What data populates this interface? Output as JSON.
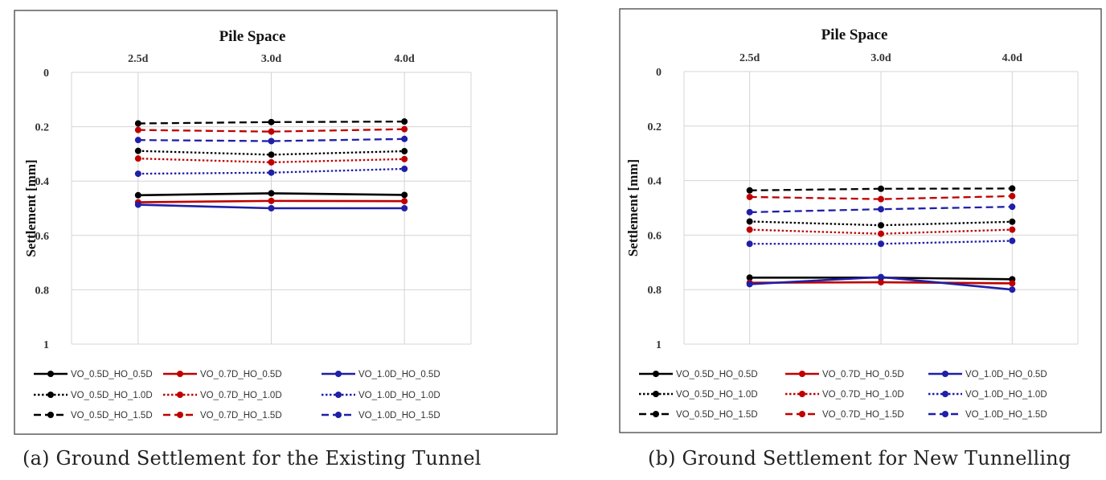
{
  "chart_data": [
    {
      "type": "line",
      "title": "Pile Space",
      "xlabel": "",
      "ylabel": "Settlement [mm]",
      "categories": [
        "2.5d",
        "3.0d",
        "4.0d"
      ],
      "y_ticks": [
        "0",
        "0.2",
        "0.4",
        "0.6",
        "0.8",
        "1"
      ],
      "ylim": [
        0,
        1
      ],
      "y_inverted": true,
      "x_axis_position": "top",
      "grid": true,
      "legend_position": "bottom",
      "series": [
        {
          "name": "VO_0.5D_HO_0.5D",
          "color": "#000000",
          "style": "solid",
          "values": [
            0.452,
            0.445,
            0.451
          ]
        },
        {
          "name": "VO_0.5D_HO_1.0D",
          "color": "#000000",
          "style": "dotted",
          "values": [
            0.289,
            0.303,
            0.29
          ]
        },
        {
          "name": "VO_0.5D_HO_1.5D",
          "color": "#000000",
          "style": "dashed",
          "values": [
            0.188,
            0.183,
            0.181
          ]
        },
        {
          "name": "VO_0.7D_HO_0.5D",
          "color": "#c00000",
          "style": "solid",
          "values": [
            0.478,
            0.473,
            0.474
          ]
        },
        {
          "name": "VO_0.7D_HO_1.0D",
          "color": "#c00000",
          "style": "dotted",
          "values": [
            0.317,
            0.331,
            0.319
          ]
        },
        {
          "name": "VO_0.7D_HO_1.5D",
          "color": "#c00000",
          "style": "dashed",
          "values": [
            0.212,
            0.218,
            0.209
          ]
        },
        {
          "name": "VO_1.0D_HO_0.5D",
          "color": "#1f1fa8",
          "style": "solid",
          "values": [
            0.487,
            0.5,
            0.5
          ]
        },
        {
          "name": "VO_1.0D_HO_1.0D",
          "color": "#1f1fa8",
          "style": "dotted",
          "values": [
            0.373,
            0.369,
            0.355
          ]
        },
        {
          "name": "VO_1.0D_HO_1.5D",
          "color": "#1f1fa8",
          "style": "dashed",
          "values": [
            0.249,
            0.253,
            0.245
          ]
        }
      ]
    },
    {
      "type": "line",
      "title": "Pile Space",
      "xlabel": "",
      "ylabel": "Settlement [mm]",
      "categories": [
        "2.5d",
        "3.0d",
        "4.0d"
      ],
      "y_ticks": [
        "0",
        "0.2",
        "0.4",
        "0.6",
        "0.8",
        "1"
      ],
      "ylim": [
        0,
        1
      ],
      "y_inverted": true,
      "x_axis_position": "top",
      "grid": true,
      "legend_position": "bottom",
      "series": [
        {
          "name": "VO_0.5D_HO_0.5D",
          "color": "#000000",
          "style": "solid",
          "values": [
            0.756,
            0.756,
            0.762
          ]
        },
        {
          "name": "VO_0.5D_HO_1.0D",
          "color": "#000000",
          "style": "dotted",
          "values": [
            0.55,
            0.564,
            0.551
          ]
        },
        {
          "name": "VO_0.5D_HO_1.5D",
          "color": "#000000",
          "style": "dashed",
          "values": [
            0.436,
            0.43,
            0.429
          ]
        },
        {
          "name": "VO_0.7D_HO_0.5D",
          "color": "#c00000",
          "style": "solid",
          "values": [
            0.775,
            0.773,
            0.777
          ]
        },
        {
          "name": "VO_0.7D_HO_1.0D",
          "color": "#c00000",
          "style": "dotted",
          "values": [
            0.58,
            0.595,
            0.58
          ]
        },
        {
          "name": "VO_0.7D_HO_1.5D",
          "color": "#c00000",
          "style": "dashed",
          "values": [
            0.46,
            0.468,
            0.457
          ]
        },
        {
          "name": "VO_1.0D_HO_0.5D",
          "color": "#1f1fa8",
          "style": "solid",
          "values": [
            0.78,
            0.754,
            0.8
          ]
        },
        {
          "name": "VO_1.0D_HO_1.0D",
          "color": "#1f1fa8",
          "style": "dotted",
          "values": [
            0.632,
            0.632,
            0.621
          ]
        },
        {
          "name": "VO_1.0D_HO_1.5D",
          "color": "#1f1fa8",
          "style": "dashed",
          "values": [
            0.516,
            0.505,
            0.496
          ]
        }
      ]
    }
  ],
  "captions": {
    "a": "(a) Ground Settlement for the Existing Tunnel",
    "b": "(b) Ground Settlement for New Tunnelling"
  }
}
